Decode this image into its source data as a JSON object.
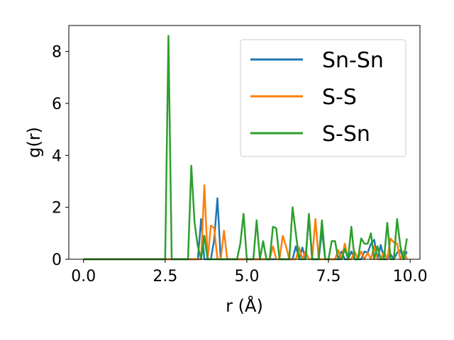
{
  "chart_data": {
    "type": "line",
    "xlabel": "r (Å)",
    "ylabel": "g(r)",
    "xlim": [
      -0.45,
      10.3
    ],
    "ylim": [
      0,
      9.0
    ],
    "xticks": [
      0.0,
      2.5,
      5.0,
      7.5,
      10.0
    ],
    "xtick_labels": [
      "0.0",
      "2.5",
      "5.0",
      "7.5",
      "10.0"
    ],
    "yticks": [
      0,
      2,
      4,
      6,
      8
    ],
    "ytick_labels": [
      "0",
      "2",
      "4",
      "6",
      "8"
    ],
    "grid": false,
    "legend_position": "top-right",
    "series": [
      {
        "name": "Sn-Sn",
        "color": "#1f77b4",
        "x": [
          0.0,
          3.5,
          3.6,
          3.7,
          3.8,
          3.9,
          4.0,
          4.1,
          4.2,
          4.3,
          4.4,
          4.5,
          4.6,
          4.7,
          4.8,
          4.9,
          5.0,
          5.1,
          5.2,
          5.3,
          5.4,
          5.5,
          5.6,
          5.7,
          5.8,
          5.9,
          6.0,
          6.1,
          6.2,
          6.3,
          6.4,
          6.5,
          6.6,
          6.7,
          6.8,
          6.9,
          7.0,
          7.1,
          7.2,
          7.3,
          7.4,
          7.5,
          7.6,
          7.7,
          7.8,
          7.9,
          8.0,
          8.1,
          8.2,
          8.3,
          8.4,
          8.5,
          8.6,
          8.7,
          8.8,
          8.9,
          9.0,
          9.1,
          9.2,
          9.3,
          9.4,
          9.5,
          9.6,
          9.7,
          9.8,
          9.9
        ],
        "values": [
          0.0,
          0.0,
          1.55,
          0.0,
          0.0,
          0.0,
          0.75,
          2.35,
          0.0,
          0.0,
          0.0,
          0.0,
          0.0,
          0.0,
          0.0,
          0.0,
          0.0,
          0.0,
          0.0,
          0.0,
          0.0,
          0.0,
          0.0,
          0.0,
          0.0,
          0.0,
          0.0,
          0.0,
          0.0,
          0.0,
          0.0,
          0.5,
          0.0,
          0.45,
          0.0,
          1.65,
          0.0,
          0.0,
          0.0,
          1.1,
          0.0,
          0.0,
          0.0,
          0.0,
          0.0,
          0.3,
          0.0,
          0.0,
          0.3,
          0.0,
          0.0,
          0.0,
          0.3,
          0.25,
          0.6,
          0.75,
          0.0,
          0.55,
          0.0,
          0.0,
          0.2,
          0.0,
          0.25,
          0.35,
          0.0,
          0.3
        ]
      },
      {
        "name": "S-S",
        "color": "#ff7f0e",
        "x": [
          0.0,
          3.3,
          3.5,
          3.6,
          3.7,
          3.8,
          3.9,
          4.0,
          4.1,
          4.2,
          4.3,
          4.4,
          4.5,
          4.6,
          4.7,
          4.8,
          4.9,
          5.0,
          5.1,
          5.2,
          5.3,
          5.4,
          5.5,
          5.6,
          5.7,
          5.8,
          5.9,
          6.0,
          6.1,
          6.2,
          6.3,
          6.4,
          6.5,
          6.6,
          6.7,
          6.8,
          6.9,
          7.0,
          7.1,
          7.2,
          7.3,
          7.4,
          7.5,
          7.6,
          7.7,
          7.8,
          7.9,
          8.0,
          8.1,
          8.2,
          8.3,
          8.4,
          8.5,
          8.6,
          8.7,
          8.8,
          8.9,
          9.0,
          9.1,
          9.2,
          9.3,
          9.4,
          9.5,
          9.6,
          9.7,
          9.8,
          9.9
        ],
        "values": [
          0.0,
          0.0,
          0.0,
          0.0,
          2.85,
          0.0,
          1.3,
          1.2,
          0.0,
          0.0,
          1.1,
          0.0,
          0.0,
          0.0,
          0.0,
          0.0,
          0.0,
          0.0,
          0.0,
          0.0,
          0.0,
          0.0,
          0.0,
          0.0,
          0.0,
          0.5,
          0.0,
          0.0,
          0.9,
          0.5,
          0.0,
          0.0,
          0.0,
          0.45,
          0.0,
          0.3,
          0.0,
          0.0,
          1.55,
          0.0,
          0.0,
          0.0,
          0.0,
          0.0,
          0.0,
          0.35,
          0.0,
          0.6,
          0.0,
          0.0,
          0.3,
          0.0,
          0.3,
          0.0,
          0.25,
          0.0,
          0.5,
          0.0,
          0.0,
          0.3,
          0.0,
          0.8,
          0.65,
          0.6,
          0.0,
          0.3,
          0.0
        ]
      },
      {
        "name": "S-Sn",
        "color": "#2ca02c",
        "x": [
          0.0,
          2.5,
          2.6,
          2.7,
          3.2,
          3.3,
          3.4,
          3.5,
          3.6,
          3.7,
          3.8,
          3.9,
          4.0,
          4.1,
          4.2,
          4.3,
          4.4,
          4.5,
          4.6,
          4.7,
          4.8,
          4.9,
          5.0,
          5.1,
          5.2,
          5.3,
          5.4,
          5.5,
          5.6,
          5.7,
          5.8,
          5.9,
          6.0,
          6.1,
          6.2,
          6.3,
          6.4,
          6.5,
          6.6,
          6.7,
          6.8,
          6.9,
          7.0,
          7.1,
          7.2,
          7.3,
          7.4,
          7.5,
          7.6,
          7.7,
          7.8,
          7.9,
          8.0,
          8.1,
          8.2,
          8.3,
          8.4,
          8.5,
          8.6,
          8.7,
          8.8,
          8.9,
          9.0,
          9.1,
          9.2,
          9.3,
          9.4,
          9.5,
          9.6,
          9.7,
          9.8,
          9.9
        ],
        "values": [
          0.0,
          0.0,
          8.6,
          0.0,
          0.0,
          3.6,
          1.4,
          0.5,
          0.0,
          0.9,
          0.0,
          0.0,
          0.0,
          0.0,
          0.0,
          0.0,
          0.0,
          0.0,
          0.0,
          0.0,
          0.6,
          1.75,
          0.0,
          0.0,
          0.0,
          1.5,
          0.0,
          0.7,
          0.0,
          0.0,
          1.25,
          1.2,
          0.0,
          0.0,
          0.0,
          0.0,
          2.0,
          1.0,
          0.0,
          0.0,
          0.0,
          1.75,
          0.0,
          0.0,
          0.0,
          1.5,
          0.0,
          0.0,
          0.7,
          0.7,
          0.0,
          0.0,
          0.4,
          0.0,
          1.25,
          0.0,
          0.0,
          0.8,
          0.6,
          0.6,
          1.0,
          0.0,
          0.5,
          0.0,
          0.0,
          1.4,
          0.0,
          0.0,
          1.55,
          0.5,
          0.0,
          0.8
        ]
      }
    ]
  }
}
